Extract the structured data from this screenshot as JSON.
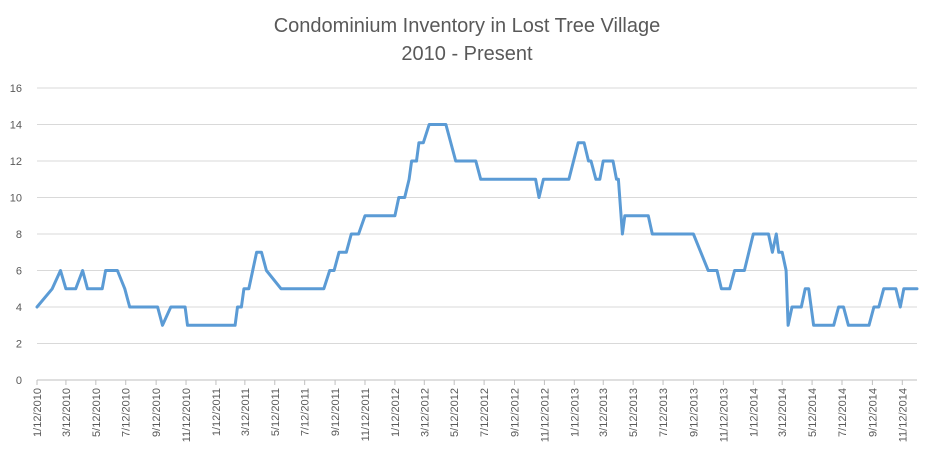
{
  "chart_data": {
    "type": "line",
    "title": "Condominium Inventory in Lost Tree Village",
    "subtitle": "2010 - Present",
    "xlabel": "",
    "ylabel": "",
    "ylim": [
      0,
      16
    ],
    "yticks": [
      0,
      2,
      4,
      6,
      8,
      10,
      12,
      14,
      16
    ],
    "xlim": [
      "2010-01-12",
      "2014-12-12"
    ],
    "xticks": [
      "1/12/2010",
      "3/12/2010",
      "5/12/2010",
      "7/12/2010",
      "9/12/2010",
      "11/12/2010",
      "1/12/2011",
      "3/12/2011",
      "5/12/2011",
      "7/12/2011",
      "9/12/2011",
      "11/12/2011",
      "1/12/2012",
      "3/12/2012",
      "5/12/2012",
      "7/12/2012",
      "9/12/2012",
      "11/12/2012",
      "1/12/2013",
      "3/12/2013",
      "5/12/2013",
      "7/12/2013",
      "9/12/2013",
      "11/12/2013",
      "1/12/2014",
      "3/12/2014",
      "5/12/2014",
      "7/12/2014",
      "9/12/2014",
      "11/12/2014"
    ],
    "grid": "horizontal",
    "legend": "none",
    "line_color": "#5b9bd5",
    "series": [
      {
        "points": [
          [
            "2010-01-12",
            4
          ],
          [
            "2010-02-12",
            5
          ],
          [
            "2010-03-01",
            6
          ],
          [
            "2010-03-12",
            5
          ],
          [
            "2010-04-01",
            5
          ],
          [
            "2010-04-15",
            6
          ],
          [
            "2010-04-25",
            5
          ],
          [
            "2010-05-25",
            5
          ],
          [
            "2010-06-01",
            6
          ],
          [
            "2010-06-25",
            6
          ],
          [
            "2010-07-10",
            5
          ],
          [
            "2010-07-20",
            4
          ],
          [
            "2010-08-20",
            4
          ],
          [
            "2010-09-15",
            4
          ],
          [
            "2010-09-25",
            3
          ],
          [
            "2010-10-12",
            4
          ],
          [
            "2010-11-10",
            4
          ],
          [
            "2010-11-15",
            3
          ],
          [
            "2011-02-20",
            3
          ],
          [
            "2011-02-25",
            4
          ],
          [
            "2011-03-05",
            4
          ],
          [
            "2011-03-10",
            5
          ],
          [
            "2011-03-20",
            5
          ],
          [
            "2011-04-05",
            7
          ],
          [
            "2011-04-15",
            7
          ],
          [
            "2011-04-25",
            6
          ],
          [
            "2011-05-25",
            5
          ],
          [
            "2011-08-20",
            5
          ],
          [
            "2011-09-01",
            6
          ],
          [
            "2011-09-10",
            6
          ],
          [
            "2011-09-20",
            7
          ],
          [
            "2011-10-05",
            7
          ],
          [
            "2011-10-15",
            8
          ],
          [
            "2011-10-30",
            8
          ],
          [
            "2011-11-12",
            9
          ],
          [
            "2011-12-20",
            9
          ],
          [
            "2012-01-12",
            9
          ],
          [
            "2012-01-20",
            10
          ],
          [
            "2012-02-01",
            10
          ],
          [
            "2012-02-10",
            11
          ],
          [
            "2012-02-15",
            12
          ],
          [
            "2012-02-25",
            12
          ],
          [
            "2012-03-01",
            13
          ],
          [
            "2012-03-10",
            13
          ],
          [
            "2012-03-22",
            14
          ],
          [
            "2012-04-25",
            14
          ],
          [
            "2012-05-15",
            12
          ],
          [
            "2012-06-25",
            12
          ],
          [
            "2012-07-05",
            11
          ],
          [
            "2012-10-25",
            11
          ],
          [
            "2012-11-01",
            10
          ],
          [
            "2012-11-10",
            11
          ],
          [
            "2013-01-01",
            11
          ],
          [
            "2013-01-20",
            13
          ],
          [
            "2013-02-01",
            13
          ],
          [
            "2013-02-10",
            12
          ],
          [
            "2013-02-15",
            12
          ],
          [
            "2013-02-25",
            11
          ],
          [
            "2013-03-05",
            11
          ],
          [
            "2013-03-12",
            12
          ],
          [
            "2013-04-01",
            12
          ],
          [
            "2013-04-08",
            11
          ],
          [
            "2013-04-12",
            11
          ],
          [
            "2013-04-20",
            8
          ],
          [
            "2013-04-25",
            9
          ],
          [
            "2013-06-12",
            9
          ],
          [
            "2013-06-20",
            8
          ],
          [
            "2013-09-12",
            8
          ],
          [
            "2013-10-12",
            6
          ],
          [
            "2013-10-30",
            6
          ],
          [
            "2013-11-08",
            5
          ],
          [
            "2013-11-25",
            5
          ],
          [
            "2013-12-05",
            6
          ],
          [
            "2013-12-25",
            6
          ],
          [
            "2014-01-12",
            8
          ],
          [
            "2014-02-12",
            8
          ],
          [
            "2014-02-20",
            7
          ],
          [
            "2014-02-28",
            8
          ],
          [
            "2014-03-05",
            7
          ],
          [
            "2014-03-12",
            7
          ],
          [
            "2014-03-20",
            6
          ],
          [
            "2014-03-24",
            3
          ],
          [
            "2014-04-01",
            4
          ],
          [
            "2014-04-12",
            4
          ],
          [
            "2014-04-20",
            4
          ],
          [
            "2014-04-28",
            5
          ],
          [
            "2014-05-05",
            5
          ],
          [
            "2014-05-15",
            3
          ],
          [
            "2014-06-25",
            3
          ],
          [
            "2014-07-05",
            4
          ],
          [
            "2014-07-15",
            4
          ],
          [
            "2014-07-25",
            3
          ],
          [
            "2014-09-05",
            3
          ],
          [
            "2014-09-15",
            4
          ],
          [
            "2014-09-25",
            4
          ],
          [
            "2014-10-05",
            5
          ],
          [
            "2014-10-30",
            5
          ],
          [
            "2014-11-08",
            4
          ],
          [
            "2014-11-15",
            5
          ],
          [
            "2014-12-12",
            5
          ]
        ]
      }
    ]
  }
}
